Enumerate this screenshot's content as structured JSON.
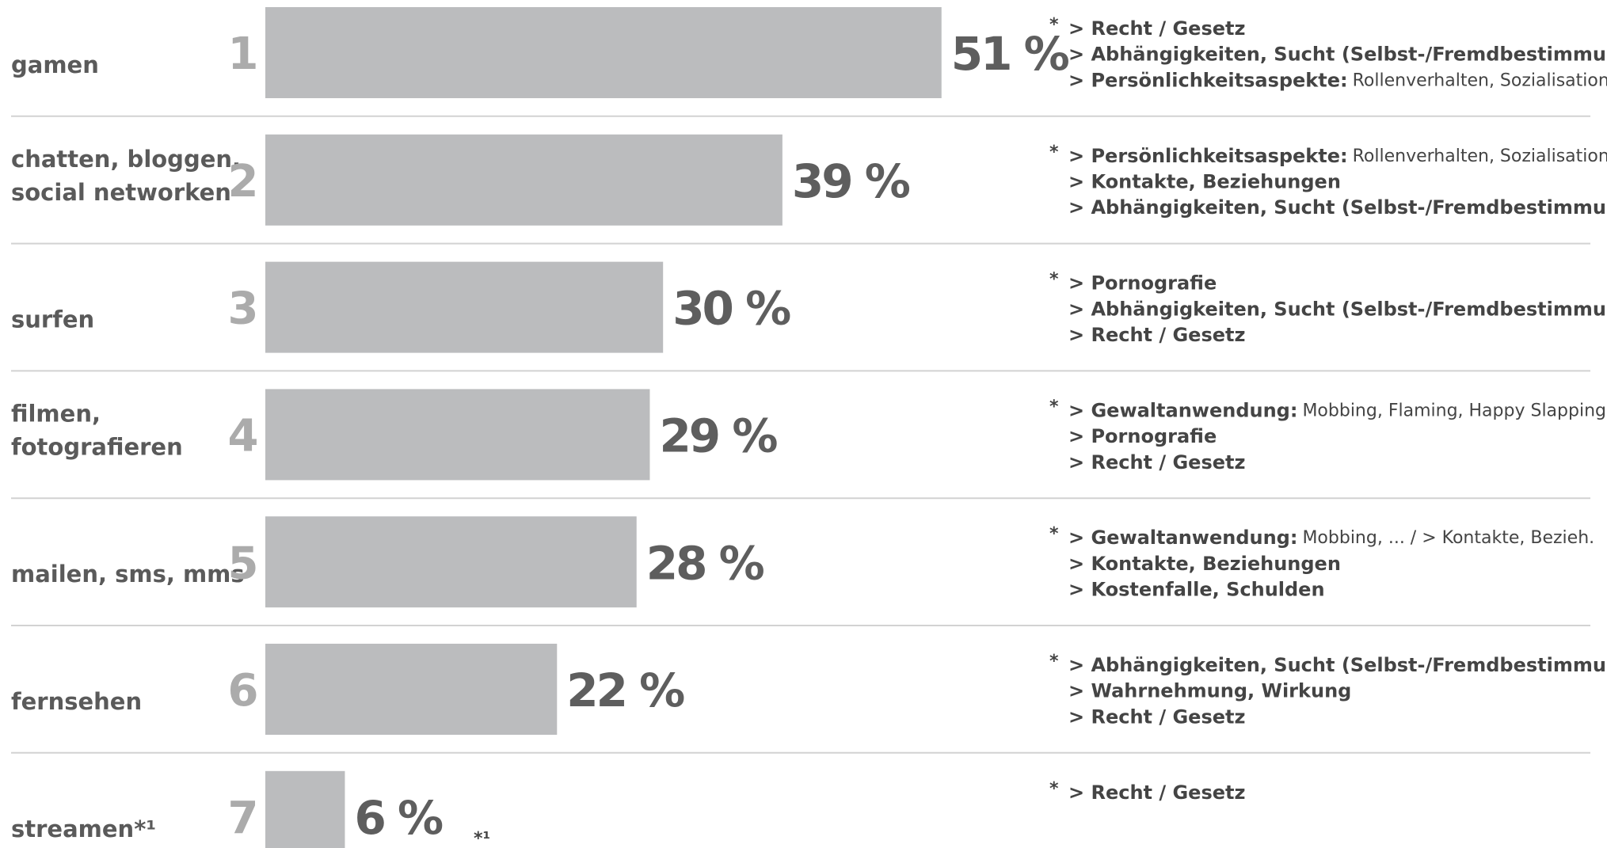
{
  "chart_data": {
    "type": "bar",
    "categories": [
      [
        "gamen"
      ],
      [
        "chatten, bloggen,",
        "social networken"
      ],
      [
        "surfen"
      ],
      [
        "filmen,",
        "fotografieren"
      ],
      [
        "mailen, sms, mms"
      ],
      [
        "fernsehen"
      ],
      [
        "streamen*¹"
      ]
    ],
    "ranks": [
      "1",
      "2",
      "3",
      "4",
      "5",
      "6",
      "7"
    ],
    "values": [
      51,
      39,
      30,
      29,
      28,
      22,
      6
    ],
    "value_labels": [
      "51 %",
      "39 %",
      "30 %",
      "29 %",
      "28 %",
      "22 %",
      "6 %"
    ],
    "color": "#bbbcbe",
    "note_marker": "*",
    "notes": [
      [
        {
          "text": "> Recht / Gesetz"
        },
        {
          "text": "> Abhängigkeiten, Sucht (Selbst-/Fremdbestimmung)"
        },
        {
          "text": "> Persönlichkeitsaspekte:",
          "detail": "Rollenverhalten, Sozialisation, ..."
        }
      ],
      [
        {
          "text": "> Persönlichkeitsaspekte:",
          "detail": "Rollenverhalten, Sozialisation, ..."
        },
        {
          "text": "> Kontakte, Beziehungen"
        },
        {
          "text": "> Abhängigkeiten, Sucht (Selbst-/Fremdbestimmung)"
        }
      ],
      [
        {
          "text": "> Pornografie"
        },
        {
          "text": "> Abhängigkeiten, Sucht (Selbst-/Fremdbestimmung)"
        },
        {
          "text": "> Recht / Gesetz"
        }
      ],
      [
        {
          "text": "> Gewaltanwendung:",
          "detail": "Mobbing, Flaming, Happy Slapping, ..."
        },
        {
          "text": "> Pornografie"
        },
        {
          "text": "> Recht / Gesetz"
        }
      ],
      [
        {
          "text": "> Gewaltanwendung:",
          "detail": "Mobbing, ... / > Kontakte, Bezieh."
        },
        {
          "text": "> Kontakte, Beziehungen"
        },
        {
          "text": "> Kostenfalle, Schulden"
        }
      ],
      [
        {
          "text": "> Abhängigkeiten, Sucht (Selbst-/Fremdbestimmung)"
        },
        {
          "text": "> Wahrnehmung, Wirkung"
        },
        {
          "text": "> Recht / Gesetz"
        }
      ],
      [
        {
          "text": "> Recht / Gesetz"
        }
      ]
    ],
    "footnote": "*¹"
  }
}
